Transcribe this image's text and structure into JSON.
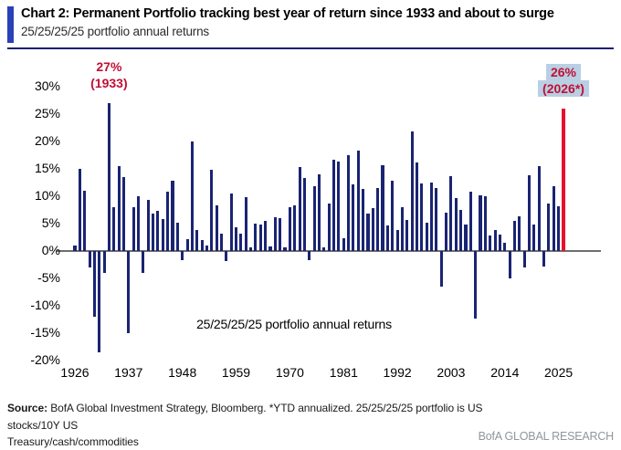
{
  "header": {
    "title": "Chart 2: Permanent Portfolio tracking best year of return since 1933 and about to surge",
    "subtitle": "25/25/25/25 portfolio annual returns"
  },
  "chart_data": {
    "type": "bar",
    "title": "25/25/25/25 portfolio annual returns",
    "inner_label": "25/25/25/25 portfolio annual returns",
    "xlabel": "",
    "ylabel": "",
    "ylim": [
      -20,
      30
    ],
    "grid": false,
    "legend_position": "none",
    "bar_color": "#1a2472",
    "highlight_color": "#e8112d",
    "highlight_year": 2026,
    "yticks": [
      "30%",
      "25%",
      "20%",
      "15%",
      "10%",
      "5%",
      "0%",
      "-5%",
      "-10%",
      "-15%",
      "-20%"
    ],
    "xticks": [
      1926,
      1937,
      1948,
      1959,
      1970,
      1981,
      1992,
      2003,
      2014,
      2025
    ],
    "years": [
      1926,
      1927,
      1928,
      1929,
      1930,
      1931,
      1932,
      1933,
      1934,
      1935,
      1936,
      1937,
      1938,
      1939,
      1940,
      1941,
      1942,
      1943,
      1944,
      1945,
      1946,
      1947,
      1948,
      1949,
      1950,
      1951,
      1952,
      1953,
      1954,
      1955,
      1956,
      1957,
      1958,
      1959,
      1960,
      1961,
      1962,
      1963,
      1964,
      1965,
      1966,
      1967,
      1968,
      1969,
      1970,
      1971,
      1972,
      1973,
      1974,
      1975,
      1976,
      1977,
      1978,
      1979,
      1980,
      1981,
      1982,
      1983,
      1984,
      1985,
      1986,
      1987,
      1988,
      1989,
      1990,
      1991,
      1992,
      1993,
      1994,
      1995,
      1996,
      1997,
      1998,
      1999,
      2000,
      2001,
      2002,
      2003,
      2004,
      2005,
      2006,
      2007,
      2008,
      2009,
      2010,
      2011,
      2012,
      2013,
      2014,
      2015,
      2016,
      2017,
      2018,
      2019,
      2020,
      2021,
      2022,
      2023,
      2024,
      2025,
      2026
    ],
    "values": [
      1.0,
      15.0,
      11.0,
      -3.0,
      -12.0,
      -18.5,
      -4.0,
      27.0,
      8.0,
      15.5,
      13.5,
      -15.0,
      8.0,
      10.0,
      -4.0,
      9.3,
      6.8,
      7.3,
      5.8,
      10.8,
      12.8,
      5.2,
      -1.7,
      2.2,
      20.0,
      3.8,
      2.0,
      1.0,
      14.8,
      8.4,
      3.2,
      -1.8,
      10.5,
      4.4,
      3.2,
      9.8,
      0.6,
      5.0,
      4.8,
      5.5,
      0.8,
      6.2,
      6.0,
      0.6,
      8.0,
      8.4,
      15.4,
      13.4,
      -1.7,
      11.9,
      14.0,
      0.7,
      8.7,
      16.7,
      16.3,
      2.3,
      17.5,
      12.2,
      18.4,
      11.4,
      6.8,
      7.9,
      11.5,
      15.6,
      4.6,
      12.8,
      3.9,
      8.0,
      5.6,
      21.8,
      16.2,
      12.3,
      5.1,
      12.5,
      11.5,
      -6.5,
      7.0,
      13.6,
      9.7,
      7.5,
      4.9,
      10.8,
      -12.4,
      10.2,
      10.0,
      2.8,
      3.8,
      3.0,
      1.5,
      -5.0,
      5.5,
      6.4,
      -3.0,
      13.8,
      4.9,
      15.5,
      -2.8,
      8.7,
      11.8,
      8.2,
      26.0
    ],
    "annotations": [
      {
        "label": "27%",
        "sublabel": "(1933)",
        "year": 1933,
        "color": "#c00f35",
        "highlighted": false
      },
      {
        "label": "26%",
        "sublabel": "(2026*)",
        "year": 2026,
        "color": "#c00f35",
        "highlighted": true,
        "highlight_bg": "#b9cfe3"
      }
    ]
  },
  "footer": {
    "source_label": "Source:",
    "source_line1": " BofA Global Investment Strategy, Bloomberg. *YTD annualized. 25/25/25/25 portfolio is US stocks/10Y US",
    "source_line2": "Treasury/cash/commodities",
    "brand": "BofA GLOBAL RESEARCH"
  }
}
